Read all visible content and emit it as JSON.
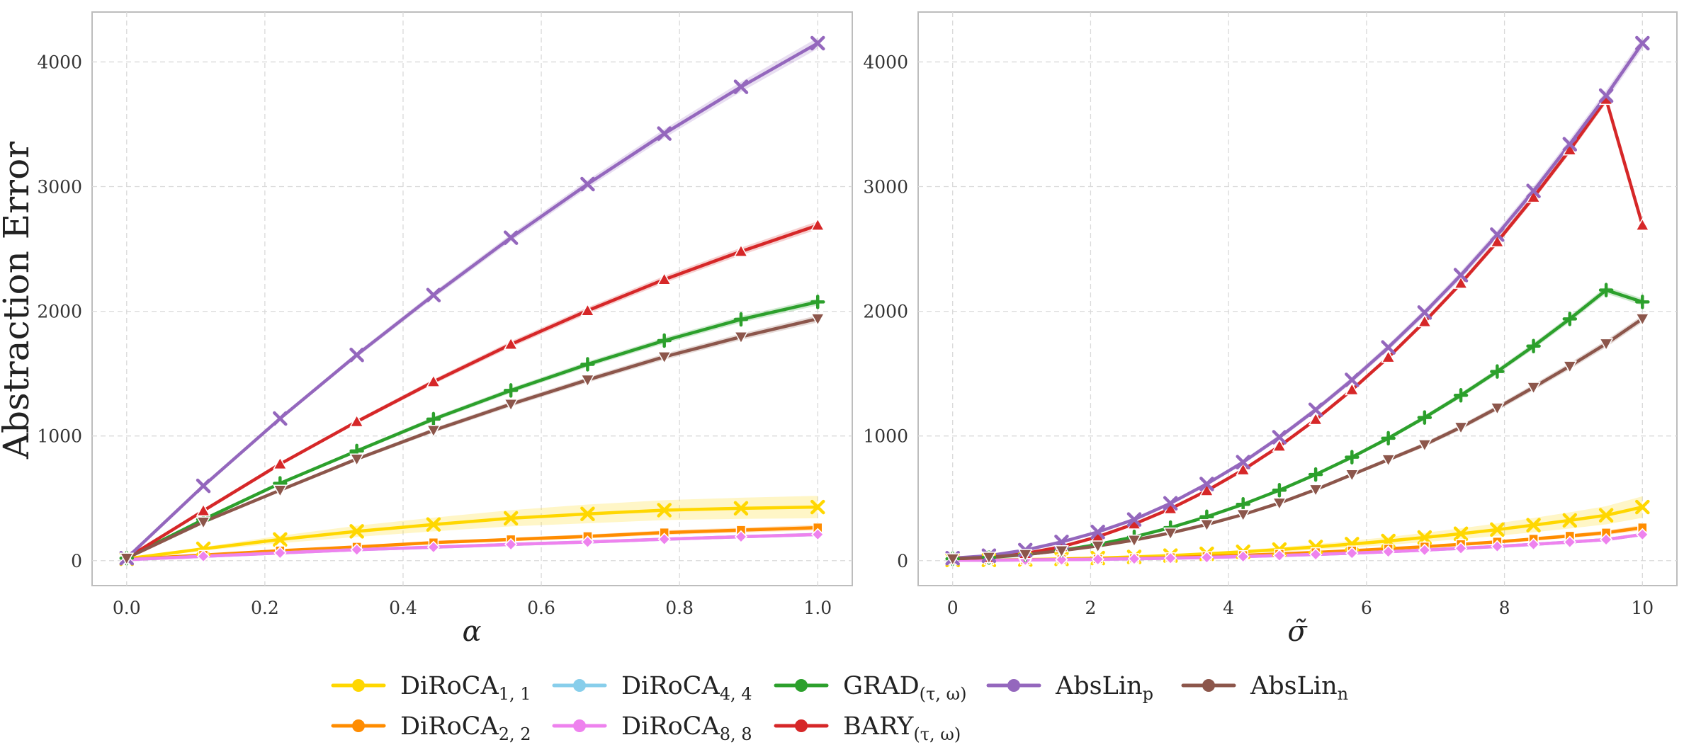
{
  "chart_data": [
    {
      "type": "line",
      "title": "",
      "xlabel": "α",
      "ylabel": "Abstraction Error",
      "xlim": [
        -0.05,
        1.05
      ],
      "ylim": [
        -200,
        4400
      ],
      "x_ticks": [
        "0.0",
        "0.2",
        "0.4",
        "0.6",
        "0.8",
        "1.0"
      ],
      "y_ticks": [
        "0",
        "1000",
        "2000",
        "3000",
        "4000"
      ],
      "grid": true,
      "x": [
        0.0,
        0.111,
        0.222,
        0.333,
        0.444,
        0.556,
        0.667,
        0.778,
        0.889,
        1.0
      ],
      "series": [
        {
          "name": "DiRoCA1,1",
          "values": [
            15,
            95,
            170,
            235,
            290,
            340,
            375,
            405,
            420,
            430
          ],
          "band": [
            0,
            15,
            30,
            45,
            55,
            65,
            75,
            80,
            85,
            90
          ]
        },
        {
          "name": "DiRoCA2,2",
          "values": [
            10,
            45,
            80,
            110,
            145,
            170,
            195,
            225,
            245,
            265
          ],
          "band": [
            0,
            5,
            8,
            10,
            12,
            14,
            16,
            18,
            20,
            22
          ]
        },
        {
          "name": "DiRoCA4,4",
          "values": [
            8,
            35,
            62,
            88,
            108,
            130,
            150,
            172,
            192,
            210
          ],
          "band": [
            0,
            3,
            5,
            6,
            8,
            9,
            10,
            12,
            13,
            14
          ]
        },
        {
          "name": "DiRoCA8,8",
          "values": [
            8,
            35,
            62,
            88,
            108,
            130,
            150,
            172,
            192,
            210
          ],
          "band": [
            0,
            3,
            5,
            6,
            8,
            9,
            10,
            12,
            13,
            14
          ]
        },
        {
          "name": "GRAD(τ,ω)",
          "values": [
            20,
            330,
            620,
            880,
            1135,
            1365,
            1575,
            1765,
            1935,
            2075
          ],
          "band": [
            0,
            8,
            12,
            15,
            18,
            20,
            22,
            24,
            26,
            28
          ]
        },
        {
          "name": "BARY(τ,ω)",
          "values": [
            20,
            400,
            775,
            1115,
            1435,
            1735,
            2005,
            2255,
            2480,
            2690
          ],
          "band": [
            0,
            8,
            12,
            16,
            20,
            24,
            26,
            28,
            30,
            32
          ]
        },
        {
          "name": "AbsLinp",
          "values": [
            20,
            600,
            1140,
            1650,
            2130,
            2590,
            3020,
            3425,
            3800,
            4150
          ],
          "band": [
            0,
            10,
            15,
            20,
            24,
            28,
            32,
            36,
            40,
            44
          ]
        },
        {
          "name": "AbsLinn",
          "values": [
            20,
            310,
            565,
            815,
            1045,
            1255,
            1450,
            1635,
            1795,
            1940
          ],
          "band": [
            0,
            8,
            12,
            15,
            18,
            20,
            22,
            24,
            26,
            28
          ]
        }
      ]
    },
    {
      "type": "line",
      "title": "",
      "xlabel": "σ̃",
      "ylabel": "",
      "xlim": [
        -0.5,
        10.5
      ],
      "ylim": [
        -200,
        4400
      ],
      "x_ticks": [
        "0",
        "2",
        "4",
        "6",
        "8",
        "10"
      ],
      "y_ticks": [
        "0",
        "1000",
        "2000",
        "3000",
        "4000"
      ],
      "grid": true,
      "x": [
        0,
        0.526,
        1.053,
        1.579,
        2.105,
        2.632,
        3.158,
        3.684,
        4.211,
        4.737,
        5.263,
        5.789,
        6.316,
        6.842,
        7.368,
        7.895,
        8.421,
        8.947,
        9.474,
        10.0
      ],
      "series": [
        {
          "name": "DiRoCA1,1",
          "values": [
            5,
            6,
            9,
            14,
            21,
            30,
            41,
            55,
            71,
            89,
            110,
            133,
            158,
            186,
            216,
            249,
            285,
            323,
            364,
            430
          ],
          "band": [
            0,
            1,
            2,
            3,
            4,
            6,
            8,
            11,
            14,
            18,
            22,
            27,
            32,
            37,
            43,
            50,
            57,
            65,
            73,
            86
          ]
        },
        {
          "name": "DiRoCA2,2",
          "values": [
            4,
            5,
            7,
            10,
            14,
            19,
            26,
            34,
            43,
            54,
            66,
            80,
            95,
            112,
            131,
            151,
            174,
            198,
            224,
            265
          ],
          "band": [
            0,
            1,
            1,
            1,
            2,
            2,
            3,
            3,
            4,
            5,
            6,
            7,
            8,
            9,
            11,
            12,
            14,
            16,
            18,
            22
          ]
        },
        {
          "name": "DiRoCA4,4",
          "values": [
            3,
            4,
            6,
            8,
            11,
            15,
            20,
            26,
            33,
            41,
            50,
            60,
            72,
            85,
            99,
            114,
            131,
            149,
            169,
            210
          ],
          "band": [
            0,
            1,
            1,
            1,
            1,
            2,
            2,
            3,
            3,
            4,
            4,
            5,
            6,
            7,
            8,
            9,
            10,
            11,
            12,
            14
          ]
        },
        {
          "name": "DiRoCA8,8",
          "values": [
            3,
            4,
            6,
            8,
            11,
            15,
            20,
            26,
            33,
            41,
            50,
            60,
            72,
            85,
            99,
            114,
            131,
            149,
            169,
            210
          ],
          "band": [
            0,
            1,
            1,
            1,
            1,
            2,
            2,
            3,
            3,
            4,
            4,
            5,
            6,
            7,
            8,
            9,
            10,
            11,
            12,
            14
          ]
        },
        {
          "name": "GRAD(τ,ω)",
          "values": [
            15,
            25,
            48,
            83,
            130,
            191,
            265,
            352,
            452,
            565,
            691,
            830,
            982,
            1148,
            1326,
            1517,
            1721,
            1939,
            2170,
            2075
          ],
          "band": [
            0,
            2,
            3,
            4,
            5,
            6,
            7,
            8,
            9,
            10,
            12,
            14,
            16,
            18,
            20,
            22,
            24,
            26,
            28,
            28
          ]
        },
        {
          "name": "BARY(τ,ω)",
          "values": [
            15,
            25,
            57,
            112,
            192,
            294,
            416,
            561,
            728,
            918,
            1132,
            1370,
            1631,
            1916,
            2224,
            2557,
            2914,
            3294,
            3699,
            2690
          ],
          "band": [
            0,
            2,
            3,
            4,
            5,
            6,
            7,
            8,
            10,
            12,
            14,
            16,
            18,
            20,
            22,
            24,
            26,
            28,
            30,
            32
          ]
        },
        {
          "name": "AbsLinp",
          "values": [
            20,
            40,
            85,
            150,
            230,
            330,
            460,
            615,
            790,
            990,
            1210,
            1450,
            1710,
            1990,
            2290,
            2615,
            2965,
            3340,
            3730,
            4150
          ],
          "band": [
            0,
            3,
            5,
            7,
            9,
            11,
            13,
            15,
            17,
            19,
            21,
            23,
            25,
            27,
            30,
            33,
            36,
            39,
            42,
            44
          ]
        },
        {
          "name": "AbsLinn",
          "values": [
            15,
            28,
            50,
            80,
            118,
            165,
            222,
            290,
            370,
            462,
            570,
            690,
            810,
            930,
            1070,
            1225,
            1390,
            1560,
            1740,
            1940
          ],
          "band": [
            0,
            2,
            3,
            4,
            5,
            6,
            7,
            8,
            9,
            10,
            12,
            14,
            16,
            18,
            20,
            22,
            24,
            26,
            28,
            28
          ]
        }
      ]
    }
  ],
  "legend": {
    "placement": "bottom-center",
    "items": [
      {
        "key": "DiRoCA1,1",
        "base": "DiRoCA",
        "sub": "1, 1",
        "color": "#FFD700"
      },
      {
        "key": "DiRoCA2,2",
        "base": "DiRoCA",
        "sub": "2, 2",
        "color": "#FF8C00"
      },
      {
        "key": "DiRoCA4,4",
        "base": "DiRoCA",
        "sub": "4, 4",
        "color": "#87CEEB"
      },
      {
        "key": "DiRoCA8,8",
        "base": "DiRoCA",
        "sub": "8, 8",
        "color": "#EE82EE"
      },
      {
        "key": "GRAD(τ,ω)",
        "base": "GRAD",
        "sub": "(τ, ω)",
        "color": "#2CA02C"
      },
      {
        "key": "BARY(τ,ω)",
        "base": "BARY",
        "sub": "(τ, ω)",
        "color": "#D62728"
      },
      {
        "key": "AbsLinp",
        "base": "AbsLin",
        "sub": "p",
        "color": "#9467BD"
      },
      {
        "key": "AbsLinn",
        "base": "AbsLin",
        "sub": "n",
        "color": "#8C564B"
      }
    ]
  },
  "series_style": {
    "DiRoCA1,1": {
      "color": "#FFD700",
      "marker": "x-icon"
    },
    "DiRoCA2,2": {
      "color": "#FF8C00",
      "marker": "square-icon"
    },
    "DiRoCA4,4": {
      "color": "#87CEEB",
      "marker": "diamond-icon"
    },
    "DiRoCA8,8": {
      "color": "#EE82EE",
      "marker": "diamond-icon"
    },
    "GRAD(τ,ω)": {
      "color": "#2CA02C",
      "marker": "plus-icon"
    },
    "BARY(τ,ω)": {
      "color": "#D62728",
      "marker": "triangle-up-icon"
    },
    "AbsLinp": {
      "color": "#9467BD",
      "marker": "x-icon"
    },
    "AbsLinn": {
      "color": "#8C564B",
      "marker": "triangle-down-icon"
    }
  }
}
